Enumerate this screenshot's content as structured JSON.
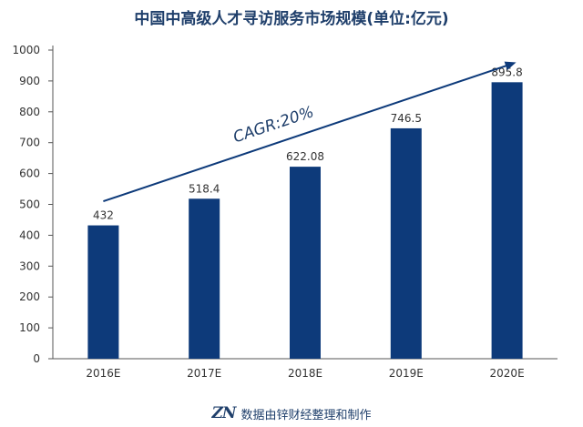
{
  "chart_data": {
    "type": "bar",
    "title": "中国中高级人才寻访服务市场规模(单位:亿元)",
    "categories": [
      "2016E",
      "2017E",
      "2018E",
      "2019E",
      "2020E"
    ],
    "values": [
      432,
      518.4,
      622.08,
      746.5,
      895.8
    ],
    "value_labels": [
      "432",
      "518.4",
      "622.08",
      "746.5",
      "895.8"
    ],
    "ylim": [
      0,
      1000
    ],
    "yticks": [
      0,
      100,
      200,
      300,
      400,
      500,
      600,
      700,
      800,
      900,
      1000
    ],
    "grid": false,
    "bar_color": "#0d3a7a",
    "annotation": {
      "text": "CAGR:20%",
      "arrow_from": {
        "x": "2016E",
        "y": 510
      },
      "arrow_to": {
        "x": "2020E",
        "y": 960
      }
    }
  },
  "footer": {
    "logo": "ZN",
    "source": "数据由锌财经整理和制作"
  }
}
